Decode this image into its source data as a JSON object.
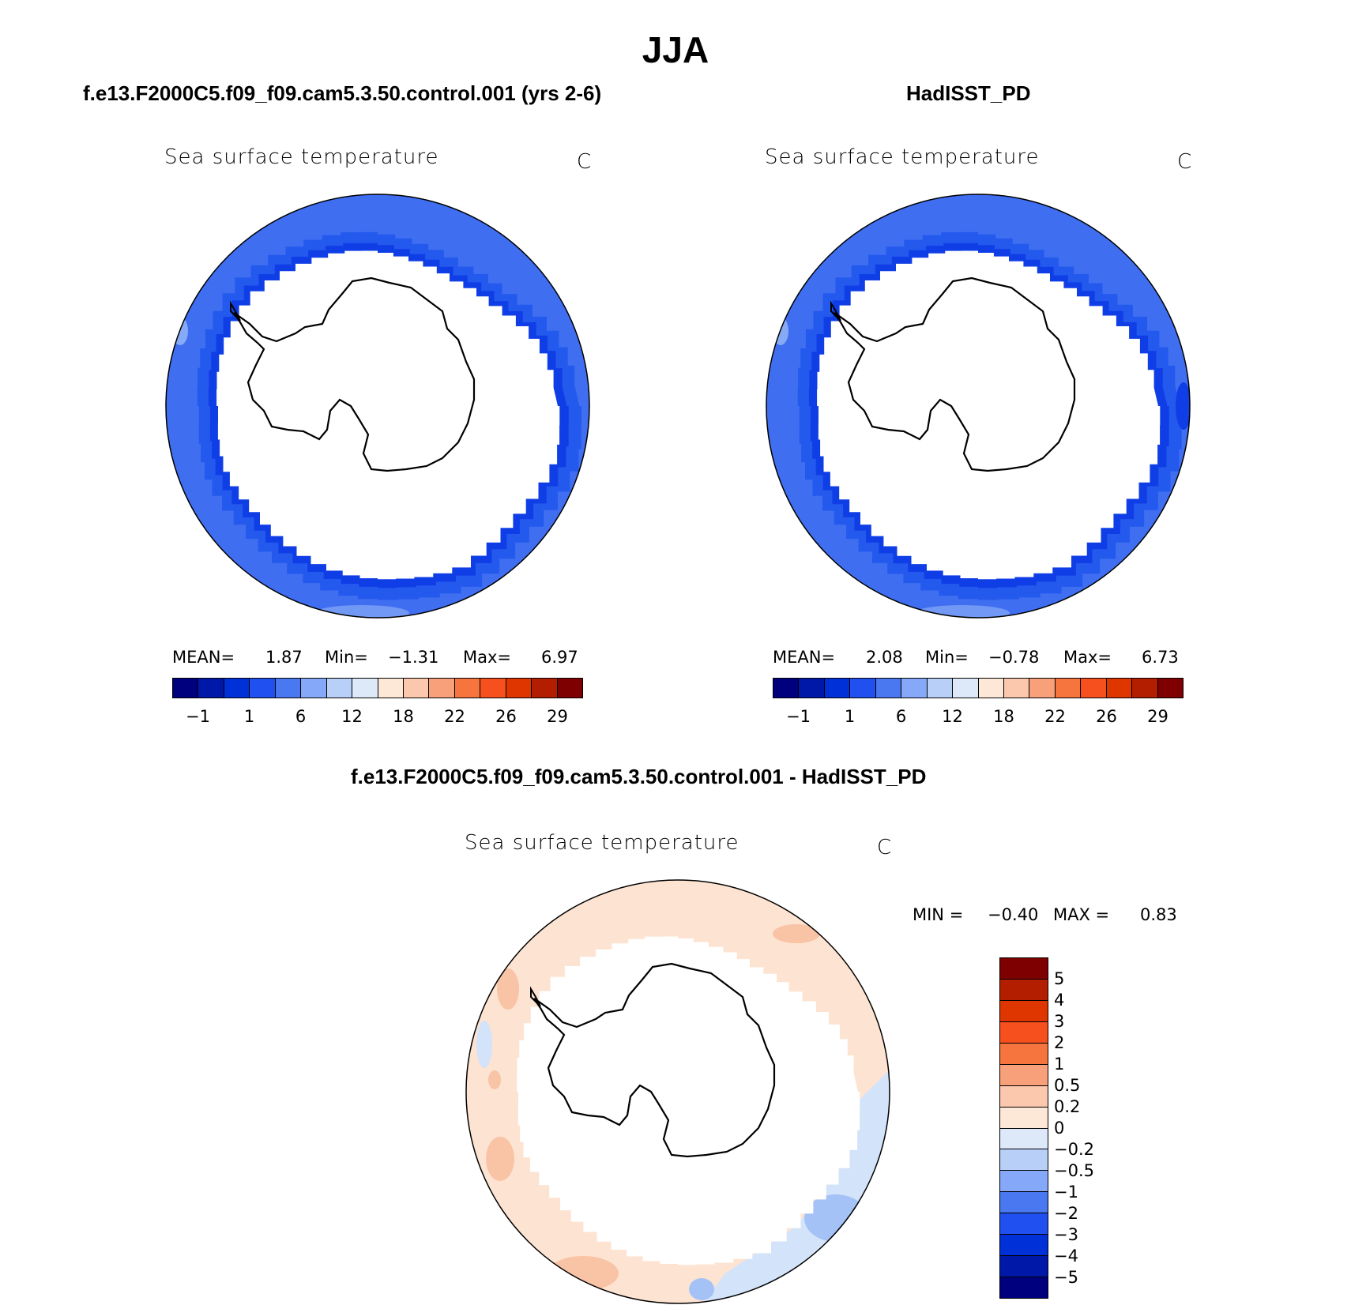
{
  "title": "JJA",
  "panels": [
    {
      "id": "model",
      "title": "f.e13.F2000C5.f09_f09.cam5.3.50.control.001 (yrs 2-6)",
      "variable_label": "Sea surface temperature",
      "units": "C",
      "stats": {
        "mean_label": "MEAN=",
        "mean": "1.87",
        "min_label": "Min=",
        "min": "−1.31",
        "max_label": "Max=",
        "max": "6.97"
      },
      "colorbar_ticks": [
        "−1",
        "1",
        "6",
        "12",
        "18",
        "22",
        "26",
        "29"
      ]
    },
    {
      "id": "obs",
      "title": "HadISST_PD",
      "variable_label": "Sea surface temperature",
      "units": "C",
      "stats": {
        "mean_label": "MEAN=",
        "mean": "2.08",
        "min_label": "Min=",
        "min": "−0.78",
        "max_label": "Max=",
        "max": "6.73"
      },
      "colorbar_ticks": [
        "−1",
        "1",
        "6",
        "12",
        "18",
        "22",
        "26",
        "29"
      ]
    }
  ],
  "diff_panel": {
    "title": "f.e13.F2000C5.f09_f09.cam5.3.50.control.001 - HadISST_PD",
    "variable_label": "Sea surface temperature",
    "units": "C",
    "stats": {
      "min_label": "MIN =",
      "min": "−0.40",
      "max_label": "MAX =",
      "max": "0.83"
    },
    "colorbar_ticks": [
      "5",
      "4",
      "3",
      "2",
      "1",
      "0.5",
      "0.2",
      "0",
      "−0.2",
      "−0.5",
      "−1",
      "−2",
      "−3",
      "−4",
      "−5"
    ]
  },
  "colors": {
    "field_colorbar": [
      "#00007f",
      "#0018a8",
      "#0030d8",
      "#2050f0",
      "#4a78f0",
      "#86a8f8",
      "#b8cff8",
      "#dde9f8",
      "#fde7d6",
      "#fbc8ad",
      "#f8a07a",
      "#f6743e",
      "#f5501e",
      "#df3600",
      "#b31e00",
      "#7f0000"
    ],
    "diff_colorbar": [
      "#7f0000",
      "#b31e00",
      "#df3600",
      "#f5501e",
      "#f6743e",
      "#f8a07a",
      "#fbc8ad",
      "#fde7d6",
      "#dde9f8",
      "#b8cff8",
      "#86a8f8",
      "#4a78f0",
      "#2050f0",
      "#0030d8",
      "#0018a8",
      "#00007f"
    ],
    "map_shades": {
      "deep": "#0f3ee6",
      "mid": "#2459ee",
      "light": "#3f6ef0",
      "pale": "#87aaf6",
      "warm": "#f9c3a6",
      "warm_light": "#fde3d1",
      "cool_light": "#d3e3fa",
      "cool": "#a5c2f7"
    }
  }
}
